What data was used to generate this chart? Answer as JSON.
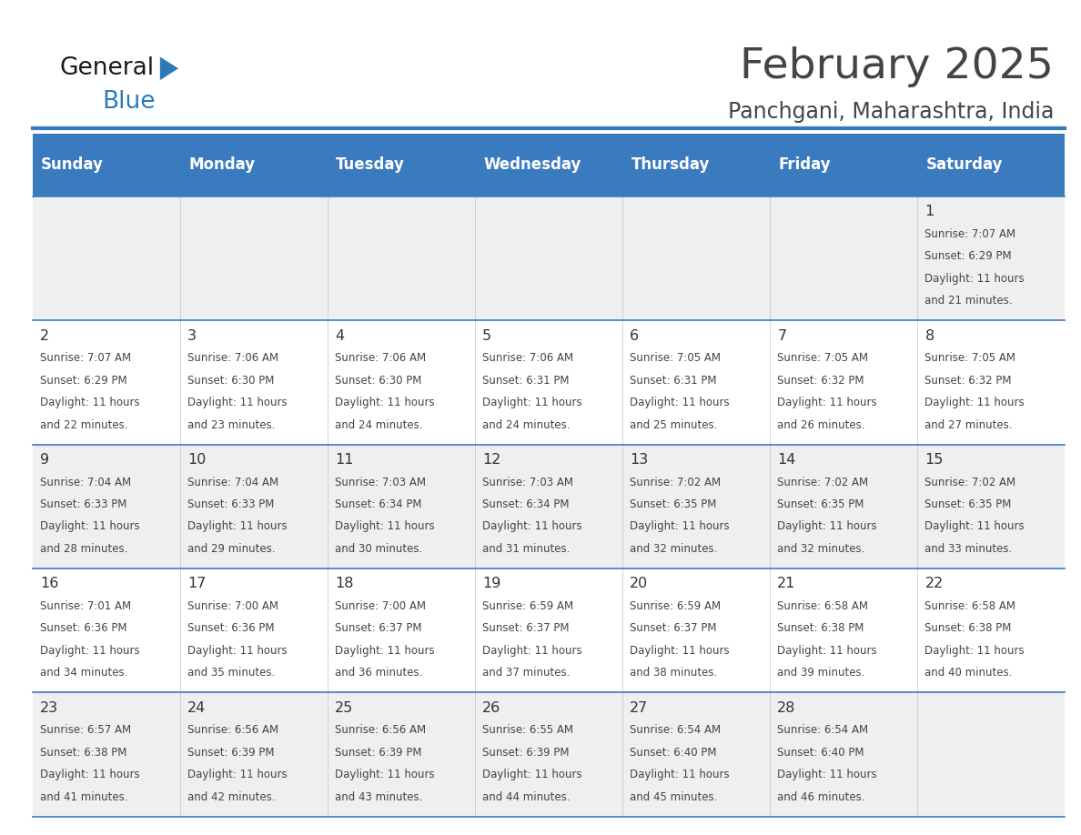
{
  "title": "February 2025",
  "subtitle": "Panchgani, Maharashtra, India",
  "header_bg": "#3A7ABF",
  "header_text_color": "#FFFFFF",
  "day_names": [
    "Sunday",
    "Monday",
    "Tuesday",
    "Wednesday",
    "Thursday",
    "Friday",
    "Saturday"
  ],
  "bg_color": "#FFFFFF",
  "cell_bg_light": "#EFEFEF",
  "cell_bg_white": "#FFFFFF",
  "separator_color": "#3A7ABF",
  "text_color": "#444444",
  "date_color": "#333333",
  "logo_general_color": "#1A1A1A",
  "logo_blue_color": "#2B7BB9",
  "calendar_data": [
    [
      null,
      null,
      null,
      null,
      null,
      null,
      {
        "day": 1,
        "sunrise": "7:07 AM",
        "sunset": "6:29 PM",
        "daylight": "11 hours and 21 minutes"
      }
    ],
    [
      {
        "day": 2,
        "sunrise": "7:07 AM",
        "sunset": "6:29 PM",
        "daylight": "11 hours and 22 minutes"
      },
      {
        "day": 3,
        "sunrise": "7:06 AM",
        "sunset": "6:30 PM",
        "daylight": "11 hours and 23 minutes"
      },
      {
        "day": 4,
        "sunrise": "7:06 AM",
        "sunset": "6:30 PM",
        "daylight": "11 hours and 24 minutes"
      },
      {
        "day": 5,
        "sunrise": "7:06 AM",
        "sunset": "6:31 PM",
        "daylight": "11 hours and 24 minutes"
      },
      {
        "day": 6,
        "sunrise": "7:05 AM",
        "sunset": "6:31 PM",
        "daylight": "11 hours and 25 minutes"
      },
      {
        "day": 7,
        "sunrise": "7:05 AM",
        "sunset": "6:32 PM",
        "daylight": "11 hours and 26 minutes"
      },
      {
        "day": 8,
        "sunrise": "7:05 AM",
        "sunset": "6:32 PM",
        "daylight": "11 hours and 27 minutes"
      }
    ],
    [
      {
        "day": 9,
        "sunrise": "7:04 AM",
        "sunset": "6:33 PM",
        "daylight": "11 hours and 28 minutes"
      },
      {
        "day": 10,
        "sunrise": "7:04 AM",
        "sunset": "6:33 PM",
        "daylight": "11 hours and 29 minutes"
      },
      {
        "day": 11,
        "sunrise": "7:03 AM",
        "sunset": "6:34 PM",
        "daylight": "11 hours and 30 minutes"
      },
      {
        "day": 12,
        "sunrise": "7:03 AM",
        "sunset": "6:34 PM",
        "daylight": "11 hours and 31 minutes"
      },
      {
        "day": 13,
        "sunrise": "7:02 AM",
        "sunset": "6:35 PM",
        "daylight": "11 hours and 32 minutes"
      },
      {
        "day": 14,
        "sunrise": "7:02 AM",
        "sunset": "6:35 PM",
        "daylight": "11 hours and 32 minutes"
      },
      {
        "day": 15,
        "sunrise": "7:02 AM",
        "sunset": "6:35 PM",
        "daylight": "11 hours and 33 minutes"
      }
    ],
    [
      {
        "day": 16,
        "sunrise": "7:01 AM",
        "sunset": "6:36 PM",
        "daylight": "11 hours and 34 minutes"
      },
      {
        "day": 17,
        "sunrise": "7:00 AM",
        "sunset": "6:36 PM",
        "daylight": "11 hours and 35 minutes"
      },
      {
        "day": 18,
        "sunrise": "7:00 AM",
        "sunset": "6:37 PM",
        "daylight": "11 hours and 36 minutes"
      },
      {
        "day": 19,
        "sunrise": "6:59 AM",
        "sunset": "6:37 PM",
        "daylight": "11 hours and 37 minutes"
      },
      {
        "day": 20,
        "sunrise": "6:59 AM",
        "sunset": "6:37 PM",
        "daylight": "11 hours and 38 minutes"
      },
      {
        "day": 21,
        "sunrise": "6:58 AM",
        "sunset": "6:38 PM",
        "daylight": "11 hours and 39 minutes"
      },
      {
        "day": 22,
        "sunrise": "6:58 AM",
        "sunset": "6:38 PM",
        "daylight": "11 hours and 40 minutes"
      }
    ],
    [
      {
        "day": 23,
        "sunrise": "6:57 AM",
        "sunset": "6:38 PM",
        "daylight": "11 hours and 41 minutes"
      },
      {
        "day": 24,
        "sunrise": "6:56 AM",
        "sunset": "6:39 PM",
        "daylight": "11 hours and 42 minutes"
      },
      {
        "day": 25,
        "sunrise": "6:56 AM",
        "sunset": "6:39 PM",
        "daylight": "11 hours and 43 minutes"
      },
      {
        "day": 26,
        "sunrise": "6:55 AM",
        "sunset": "6:39 PM",
        "daylight": "11 hours and 44 minutes"
      },
      {
        "day": 27,
        "sunrise": "6:54 AM",
        "sunset": "6:40 PM",
        "daylight": "11 hours and 45 minutes"
      },
      {
        "day": 28,
        "sunrise": "6:54 AM",
        "sunset": "6:40 PM",
        "daylight": "11 hours and 46 minutes"
      },
      null
    ]
  ]
}
